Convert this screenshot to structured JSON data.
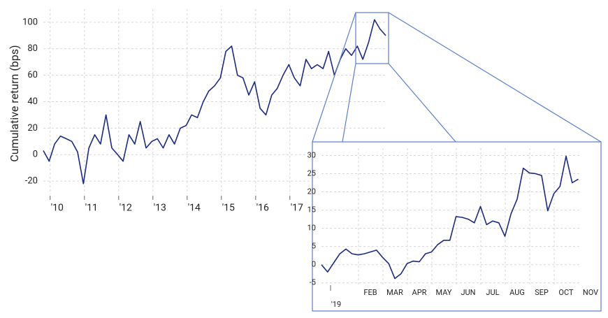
{
  "chart_data": [
    {
      "type": "line",
      "y_label": "Cumulative return (bps)",
      "x": [
        2009.8,
        2009.97,
        2010.13,
        2010.3,
        2010.47,
        2010.63,
        2010.8,
        2010.97,
        2011.13,
        2011.3,
        2011.47,
        2011.63,
        2011.8,
        2011.97,
        2012.13,
        2012.3,
        2012.47,
        2012.63,
        2012.8,
        2012.97,
        2013.13,
        2013.3,
        2013.47,
        2013.63,
        2013.8,
        2013.97,
        2014.13,
        2014.3,
        2014.47,
        2014.63,
        2014.8,
        2014.97,
        2015.13,
        2015.3,
        2015.47,
        2015.63,
        2015.8,
        2015.97,
        2016.13,
        2016.3,
        2016.47,
        2016.63,
        2016.8,
        2016.97,
        2017.13,
        2017.3,
        2017.47,
        2017.63,
        2017.8,
        2017.97,
        2018.13,
        2018.3,
        2018.47,
        2018.63,
        2018.8,
        2018.97,
        2019.13,
        2019.3,
        2019.47,
        2019.63,
        2019.8
      ],
      "series": [
        {
          "color": "#1c2a80",
          "values": [
            3,
            -5,
            8,
            14,
            12,
            10,
            2,
            -22,
            5,
            15,
            8,
            30,
            5,
            0,
            -5,
            15,
            8,
            25,
            5,
            10,
            12,
            5,
            15,
            8,
            20,
            22,
            30,
            28,
            40,
            48,
            52,
            58,
            78,
            82,
            60,
            58,
            45,
            55,
            35,
            30,
            45,
            50,
            60,
            68,
            58,
            52,
            72,
            65,
            68,
            65,
            78,
            60,
            72,
            80,
            75,
            82,
            72,
            85,
            102,
            95,
            90
          ]
        }
      ],
      "xlim": [
        2009.8,
        2019.8
      ],
      "xticks": [
        {
          "value": 2010,
          "label": "'10"
        },
        {
          "value": 2011,
          "label": "'11"
        },
        {
          "value": 2012,
          "label": "'12"
        },
        {
          "value": 2013,
          "label": "'13"
        },
        {
          "value": 2014,
          "label": "'14"
        },
        {
          "value": 2015,
          "label": "'15"
        },
        {
          "value": 2016,
          "label": "'16"
        },
        {
          "value": 2017,
          "label": "'17"
        }
      ],
      "ylim": [
        -30,
        110
      ],
      "yticks": [
        -20,
        0,
        20,
        40,
        60,
        80,
        100
      ],
      "grid": true
    },
    {
      "type": "line",
      "x": [
        0,
        0.25,
        0.5,
        0.75,
        1,
        1.25,
        1.5,
        1.75,
        2,
        2.25,
        2.5,
        2.75,
        3,
        3.25,
        3.5,
        3.75,
        4,
        4.25,
        4.5,
        4.75,
        5,
        5.25,
        5.5,
        5.75,
        6,
        6.25,
        6.5,
        6.75,
        7,
        7.25,
        7.5,
        7.75,
        8,
        8.25,
        8.5,
        8.75,
        9,
        9.25,
        9.5,
        9.75,
        10,
        10.25,
        10.5
      ],
      "series": [
        {
          "color": "#1c2a80",
          "values": [
            0,
            -2,
            0.5,
            3,
            4.3,
            3,
            2.7,
            3,
            3.5,
            4,
            2,
            0.3,
            -3.8,
            -2.5,
            0.3,
            1,
            0.8,
            3,
            3.5,
            5.5,
            6.7,
            6.7,
            13.2,
            13,
            12.5,
            11.5,
            16,
            11,
            12,
            11.5,
            7.8,
            14,
            18,
            26.5,
            25.2,
            25,
            24.5,
            14.8,
            19.5,
            21.5,
            29.8,
            22.5,
            23.5
          ]
        }
      ],
      "xlim": [
        0,
        10.6
      ],
      "xticks": [
        {
          "value": 0.6,
          "label": "'19"
        },
        {
          "value": 2,
          "label": "FEB"
        },
        {
          "value": 3,
          "label": "MAR"
        },
        {
          "value": 4,
          "label": "APR"
        },
        {
          "value": 5,
          "label": "MAY"
        },
        {
          "value": 6,
          "label": "JUN"
        },
        {
          "value": 7,
          "label": "JUL"
        },
        {
          "value": 8,
          "label": "AUG"
        },
        {
          "value": 9,
          "label": "SEP"
        },
        {
          "value": 10,
          "label": "OCT"
        },
        {
          "value": 11,
          "label": "NOV"
        }
      ],
      "ylim": [
        -6,
        32
      ],
      "yticks": [
        -5,
        0,
        5,
        10,
        15,
        20,
        25,
        30
      ],
      "grid": true
    }
  ]
}
